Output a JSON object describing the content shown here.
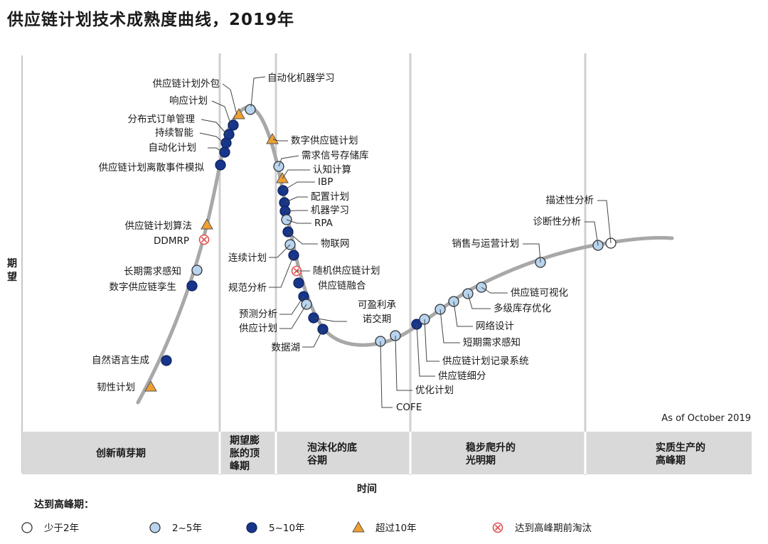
{
  "title": "供应链计划技术成熟度曲线，2019年",
  "y_axis_label": "期望",
  "x_axis_label": "时间",
  "as_of": "As of October 2019",
  "phases": [
    {
      "lines": [
        "创新萌芽期"
      ]
    },
    {
      "lines": [
        "期望膨",
        "胀的顶",
        "峰期"
      ]
    },
    {
      "lines": [
        "泡沫化的底",
        "谷期"
      ]
    },
    {
      "lines": [
        "稳步爬升的",
        "光明期"
      ]
    },
    {
      "lines": [
        "实质生产的",
        "高峰期"
      ]
    }
  ],
  "legend": {
    "title": "达到高峰期：",
    "items": [
      {
        "type": "white",
        "label": "少于2年"
      },
      {
        "type": "light",
        "label": "2~5年"
      },
      {
        "type": "dark",
        "label": "5~10年"
      },
      {
        "type": "triangle",
        "label": "超过10年"
      },
      {
        "type": "obsolete",
        "label": "达到高峰期前淘汰"
      }
    ]
  },
  "colors": {
    "white": "#ffffff",
    "light": "#b8d4ee",
    "dark": "#17358a",
    "triangle": "#f0a030",
    "obsolete": "#e05050",
    "curve": "#a8a8a8",
    "band": "#d9d9d9",
    "divider": "#d0d0d0"
  },
  "technologies": [
    {
      "name": "韧性计划",
      "type": "triangle"
    },
    {
      "name": "自然语言生成",
      "type": "dark"
    },
    {
      "name": "数字供应链孪生",
      "type": "dark"
    },
    {
      "name": "长期需求感知",
      "type": "light"
    },
    {
      "name": "DDMRP",
      "type": "obsolete"
    },
    {
      "name": "供应链计划算法",
      "type": "triangle"
    },
    {
      "name": "供应链计划离散事件模拟",
      "type": "dark"
    },
    {
      "name": "自动化计划",
      "type": "dark"
    },
    {
      "name": "持续智能",
      "type": "dark"
    },
    {
      "name": "分布式订单管理",
      "type": "dark"
    },
    {
      "name": "响应计划",
      "type": "dark"
    },
    {
      "name": "供应链计划外包",
      "type": "triangle"
    },
    {
      "name": "自动化机器学习",
      "type": "light"
    },
    {
      "name": "数字供应链计划",
      "type": "triangle"
    },
    {
      "name": "需求信号存储库",
      "type": "light"
    },
    {
      "name": "认知计算",
      "type": "triangle"
    },
    {
      "name": "IBP",
      "type": "dark"
    },
    {
      "name": "配置计划",
      "type": "dark"
    },
    {
      "name": "机器学习",
      "type": "dark"
    },
    {
      "name": "RPA",
      "type": "light"
    },
    {
      "name": "物联网",
      "type": "dark"
    },
    {
      "name": "连续计划",
      "type": "light"
    },
    {
      "name": "随机供应链计划",
      "type": "obsolete"
    },
    {
      "name": "规范分析",
      "type": "dark"
    },
    {
      "name": "供应链融合",
      "type": "dark"
    },
    {
      "name": "预测分析",
      "type": "dark"
    },
    {
      "name": "供应计划",
      "type": "light"
    },
    {
      "name": "可盈利承诺交期",
      "type": "dark"
    },
    {
      "name": "数据湖",
      "type": "dark"
    },
    {
      "name": "COFE",
      "type": "light"
    },
    {
      "name": "优化计划",
      "type": "light"
    },
    {
      "name": "供应链细分",
      "type": "dark"
    },
    {
      "name": "供应链计划记录系统",
      "type": "light"
    },
    {
      "name": "短期需求感知",
      "type": "light"
    },
    {
      "name": "网络设计",
      "type": "light"
    },
    {
      "name": "多级库存优化",
      "type": "light"
    },
    {
      "name": "供应链可视化",
      "type": "light"
    },
    {
      "name": "销售与运营计划",
      "type": "light"
    },
    {
      "name": "诊断性分析",
      "type": "light"
    },
    {
      "name": "描述性分析",
      "type": "white"
    }
  ]
}
